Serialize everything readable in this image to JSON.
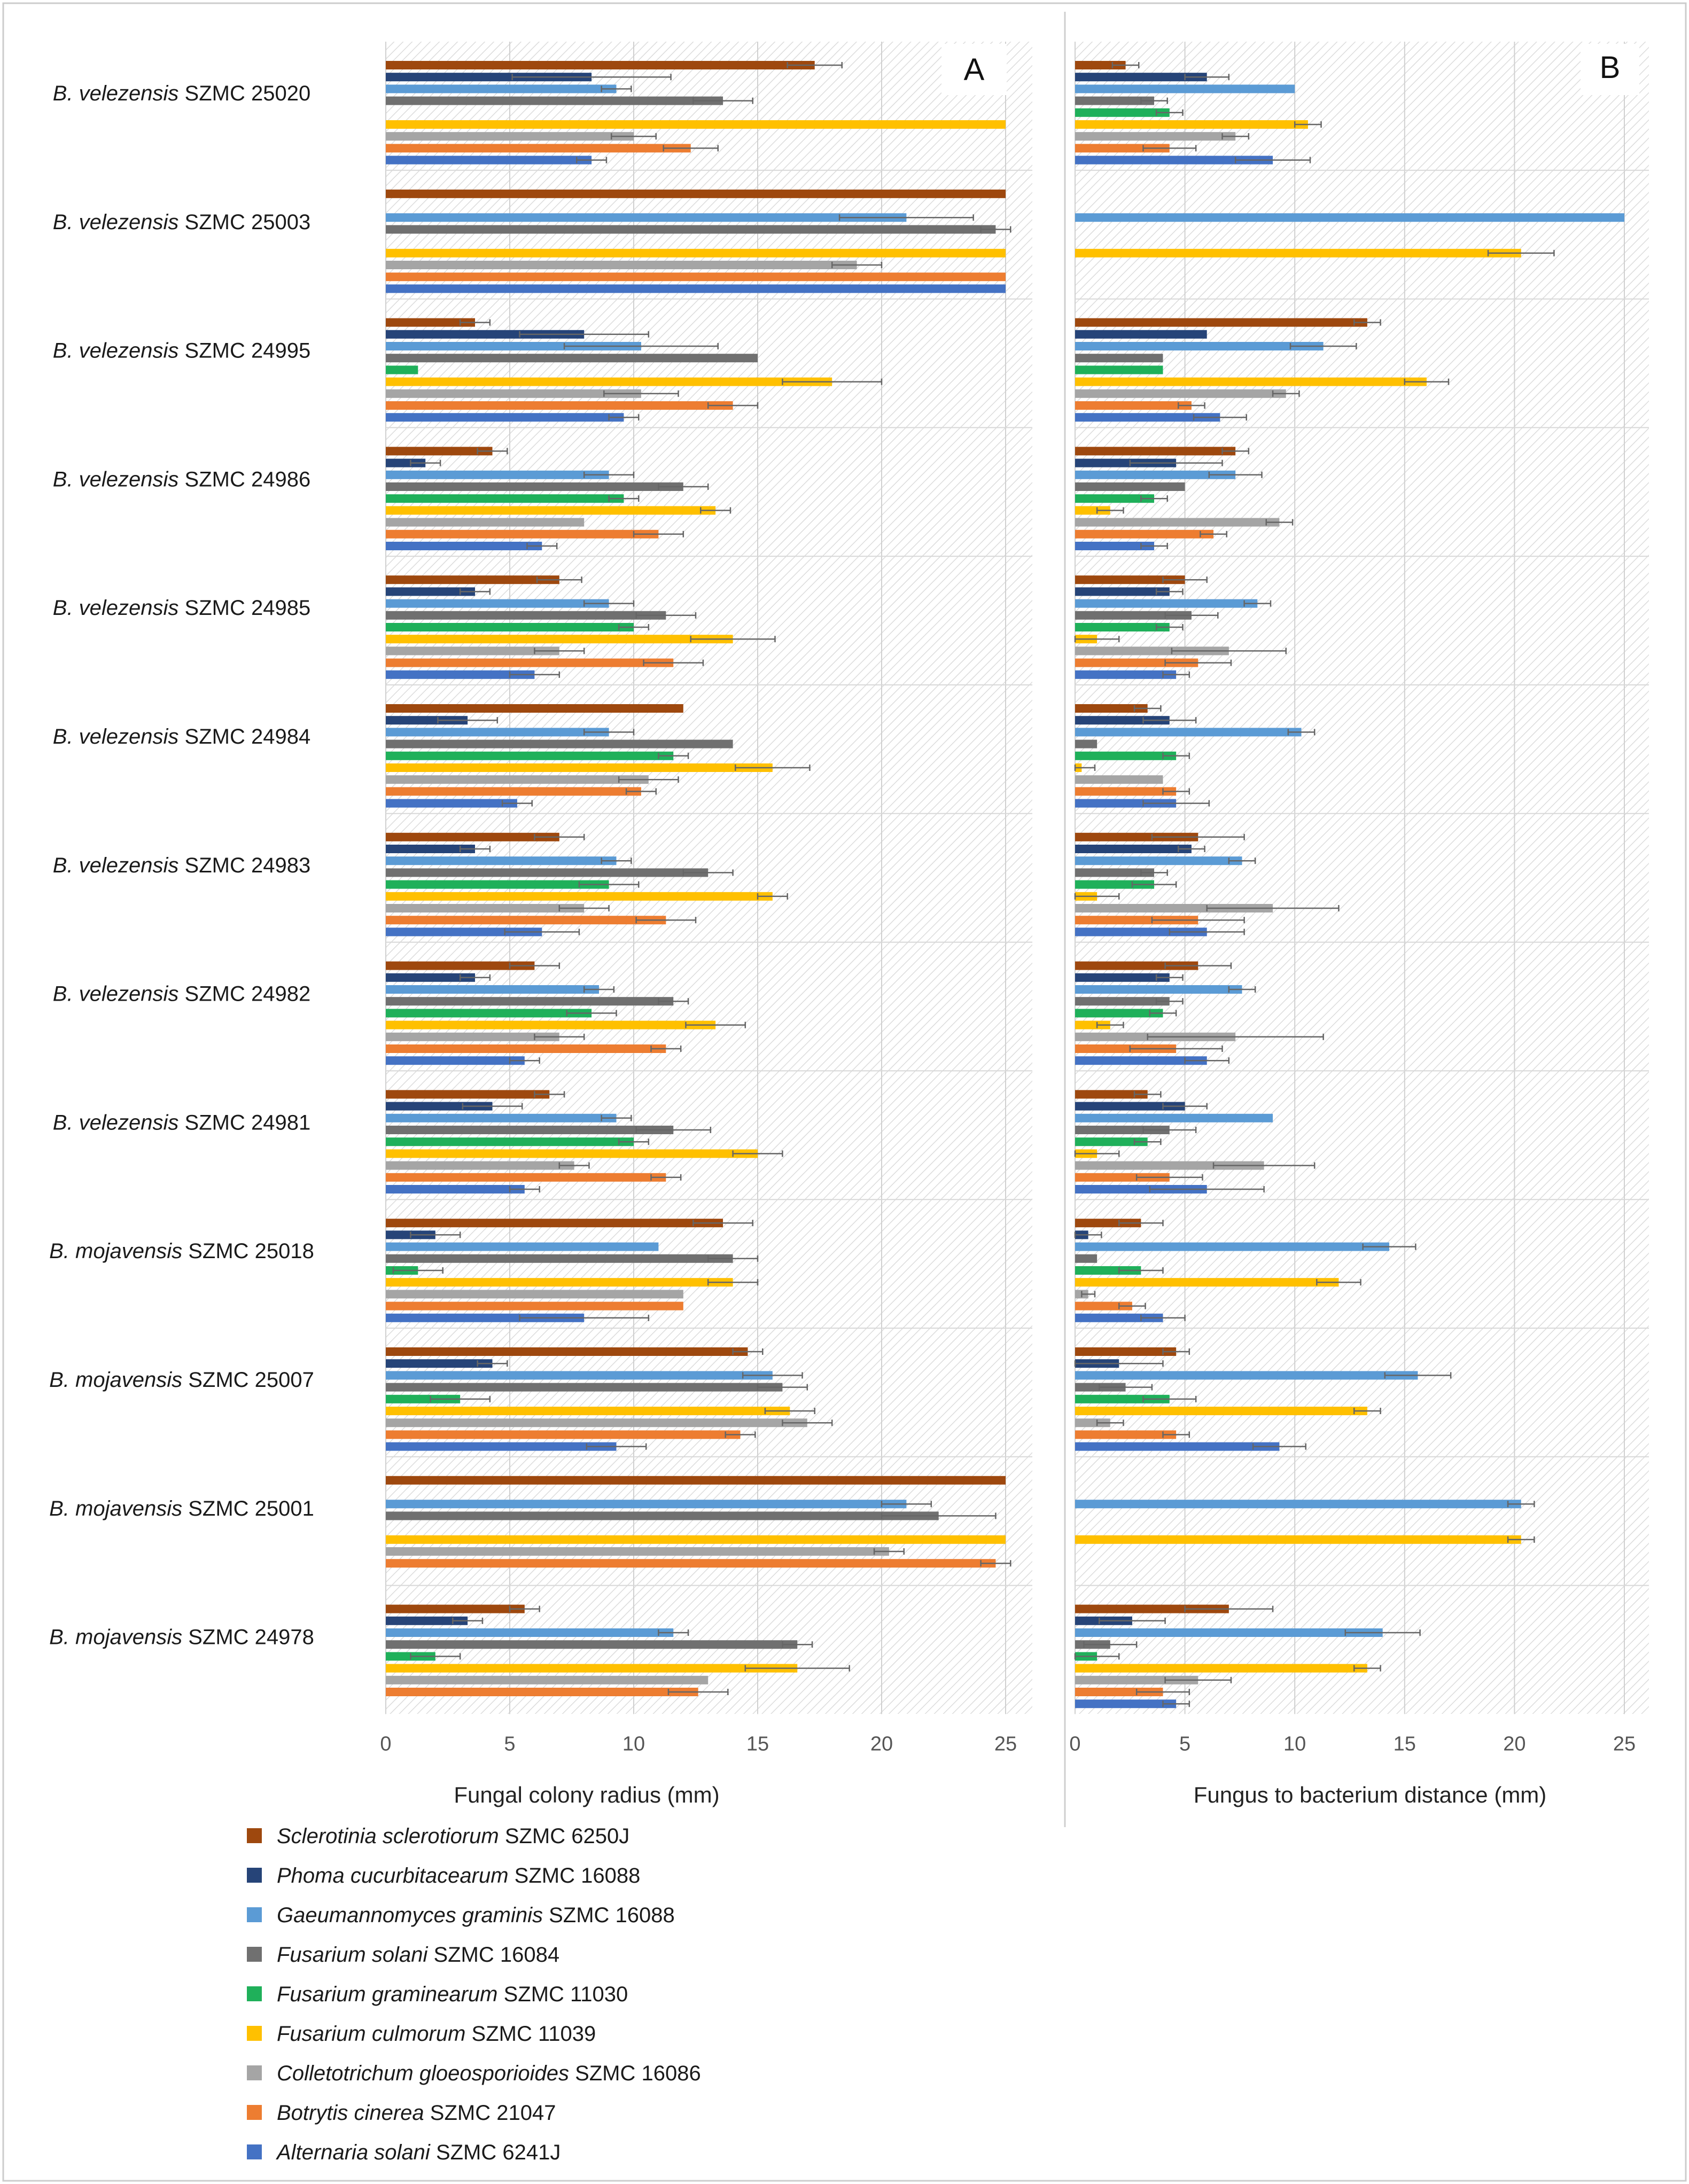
{
  "chart_data": [
    {
      "type": "bar",
      "orientation": "horizontal",
      "panel_label": "A",
      "xlabel": "Fungal colony radius (mm)",
      "xlim": [
        0,
        25
      ],
      "xticks": [
        0,
        5,
        10,
        15,
        20,
        25
      ],
      "series_order_note": "within each strain group bars are drawn top to bottom in series order",
      "values": [
        [
          17.3,
          8.3,
          9.3,
          13.6,
          null,
          25.0,
          10.0,
          12.3,
          8.3
        ],
        [
          25.0,
          null,
          21.0,
          24.6,
          null,
          25.0,
          19.0,
          25.0,
          25.0
        ],
        [
          3.6,
          8.0,
          10.3,
          15.0,
          1.3,
          18.0,
          10.3,
          14.0,
          9.6
        ],
        [
          4.3,
          1.6,
          9.0,
          12.0,
          9.6,
          13.3,
          8.0,
          11.0,
          6.3
        ],
        [
          7.0,
          3.6,
          9.0,
          11.3,
          10.0,
          14.0,
          7.0,
          11.6,
          6.0
        ],
        [
          12.0,
          3.3,
          9.0,
          14.0,
          11.6,
          15.6,
          10.6,
          10.3,
          5.3
        ],
        [
          7.0,
          3.6,
          9.3,
          13.0,
          9.0,
          15.6,
          8.0,
          11.3,
          6.3
        ],
        [
          6.0,
          3.6,
          8.6,
          11.6,
          8.3,
          13.3,
          7.0,
          11.3,
          5.6
        ],
        [
          6.6,
          4.3,
          9.3,
          11.6,
          10.0,
          15.0,
          7.6,
          11.3,
          5.6
        ],
        [
          13.6,
          2.0,
          11.0,
          14.0,
          1.3,
          14.0,
          12.0,
          12.0,
          8.0
        ],
        [
          14.6,
          4.3,
          15.6,
          16.0,
          3.0,
          16.3,
          17.0,
          14.3,
          9.3
        ],
        [
          25.0,
          null,
          21.0,
          22.3,
          null,
          25.0,
          20.3,
          24.6,
          null
        ],
        [
          5.6,
          3.3,
          11.6,
          16.6,
          2.0,
          16.6,
          13.0,
          12.6,
          null
        ]
      ],
      "errors": [
        [
          1.1,
          3.2,
          0.6,
          1.2,
          null,
          0,
          0.9,
          1.1,
          0.6
        ],
        [
          0,
          null,
          2.7,
          0.6,
          null,
          0,
          1.0,
          0,
          0
        ],
        [
          0.6,
          2.6,
          3.1,
          0,
          0,
          2.0,
          1.5,
          1.0,
          0.6
        ],
        [
          0.6,
          0.6,
          1.0,
          1.0,
          0.6,
          0.6,
          0,
          1.0,
          0.6
        ],
        [
          0.9,
          0.6,
          1.0,
          1.2,
          0.6,
          1.7,
          1.0,
          1.2,
          1.0
        ],
        [
          0,
          1.2,
          1.0,
          0,
          0.6,
          1.5,
          1.2,
          0.6,
          0.6
        ],
        [
          1.0,
          0.6,
          0.6,
          1.0,
          1.2,
          0.6,
          1.0,
          1.2,
          1.5
        ],
        [
          1.0,
          0.6,
          0.6,
          0.6,
          1.0,
          1.2,
          1.0,
          0.6,
          0.6
        ],
        [
          0.6,
          1.2,
          0.6,
          1.5,
          0.6,
          1.0,
          0.6,
          0.6,
          0.6
        ],
        [
          1.2,
          1.0,
          0,
          1.0,
          1.0,
          1.0,
          0,
          0,
          2.6
        ],
        [
          0.6,
          0.6,
          1.2,
          1.0,
          1.2,
          1.0,
          1.0,
          0.6,
          1.2
        ],
        [
          0,
          null,
          1.0,
          2.3,
          null,
          0,
          0.6,
          0.6,
          null
        ],
        [
          0.6,
          0.6,
          0.6,
          0.6,
          1.0,
          2.1,
          0,
          1.2,
          null
        ]
      ]
    },
    {
      "type": "bar",
      "orientation": "horizontal",
      "panel_label": "B",
      "xlabel": "Fungus to bacterium distance (mm)",
      "xlim": [
        0,
        25
      ],
      "xticks": [
        0,
        5,
        10,
        15,
        20,
        25
      ],
      "series_order_note": "within each strain group bars are drawn top to bottom in series order",
      "values": [
        [
          2.3,
          6.0,
          10.0,
          3.6,
          4.3,
          10.6,
          7.3,
          4.3,
          9.0
        ],
        [
          null,
          null,
          25.0,
          null,
          null,
          20.3,
          null,
          null,
          null
        ],
        [
          13.3,
          6.0,
          11.3,
          4.0,
          4.0,
          16.0,
          9.6,
          5.3,
          6.6
        ],
        [
          7.3,
          4.6,
          7.3,
          5.0,
          3.6,
          1.6,
          9.3,
          6.3,
          3.6
        ],
        [
          5.0,
          4.3,
          8.3,
          5.3,
          4.3,
          1.0,
          7.0,
          5.6,
          4.6
        ],
        [
          3.3,
          4.3,
          10.3,
          1.0,
          4.6,
          0.3,
          4.0,
          4.6,
          4.6
        ],
        [
          5.6,
          5.3,
          7.6,
          3.6,
          3.6,
          1.0,
          9.0,
          5.6,
          6.0
        ],
        [
          5.6,
          4.3,
          7.6,
          4.3,
          4.0,
          1.6,
          7.3,
          4.6,
          6.0
        ],
        [
          3.3,
          5.0,
          9.0,
          4.3,
          3.3,
          1.0,
          8.6,
          4.3,
          6.0
        ],
        [
          3.0,
          0.6,
          14.3,
          1.0,
          3.0,
          12.0,
          0.6,
          2.6,
          4.0
        ],
        [
          4.6,
          2.0,
          15.6,
          2.3,
          4.3,
          13.3,
          1.6,
          4.6,
          9.3
        ],
        [
          null,
          null,
          20.3,
          null,
          null,
          20.3,
          null,
          null,
          null
        ],
        [
          7.0,
          2.6,
          14.0,
          1.6,
          1.0,
          13.3,
          5.6,
          4.0,
          4.6
        ]
      ],
      "errors": [
        [
          0.6,
          1.0,
          0,
          0.6,
          0.6,
          0.6,
          0.6,
          1.2,
          1.7
        ],
        [
          null,
          null,
          0,
          null,
          null,
          1.5,
          null,
          null,
          null
        ],
        [
          0.6,
          0,
          1.5,
          0,
          0,
          1.0,
          0.6,
          0.6,
          1.2
        ],
        [
          0.6,
          2.1,
          1.2,
          0,
          0.6,
          0.6,
          0.6,
          0.6,
          0.6
        ],
        [
          1.0,
          0.6,
          0.6,
          1.2,
          0.6,
          1.0,
          2.6,
          1.5,
          0.6
        ],
        [
          0.6,
          1.2,
          0.6,
          0,
          0.6,
          0.6,
          0,
          0.6,
          1.5
        ],
        [
          2.1,
          0.6,
          0.6,
          0.6,
          1.0,
          1.0,
          3.0,
          2.1,
          1.7
        ],
        [
          1.5,
          0.6,
          0.6,
          0.6,
          0.6,
          0.6,
          4.0,
          2.1,
          1.0
        ],
        [
          0.6,
          1.0,
          0,
          1.2,
          0.6,
          1.0,
          2.3,
          1.5,
          2.6
        ],
        [
          1.0,
          0.6,
          1.2,
          0,
          1.0,
          1.0,
          0.3,
          0.6,
          1.0
        ],
        [
          0.6,
          2.0,
          1.5,
          1.2,
          1.2,
          0.6,
          0.6,
          0.6,
          1.2
        ],
        [
          null,
          null,
          0.6,
          null,
          null,
          0.6,
          null,
          null,
          null
        ],
        [
          2.0,
          1.5,
          1.7,
          1.2,
          1.0,
          0.6,
          1.5,
          1.2,
          0.6
        ]
      ]
    }
  ],
  "strains": [
    {
      "genus": "B.",
      "species": "velezensis",
      "code": "SZMC 25020"
    },
    {
      "genus": "B.",
      "species": "velezensis",
      "code": "SZMC 25003"
    },
    {
      "genus": "B.",
      "species": "velezensis",
      "code": "SZMC 24995"
    },
    {
      "genus": "B.",
      "species": "velezensis",
      "code": "SZMC 24986"
    },
    {
      "genus": "B.",
      "species": "velezensis",
      "code": "SZMC 24985"
    },
    {
      "genus": "B.",
      "species": "velezensis",
      "code": "SZMC 24984"
    },
    {
      "genus": "B.",
      "species": "velezensis",
      "code": "SZMC 24983"
    },
    {
      "genus": "B.",
      "species": "velezensis",
      "code": "SZMC 24982"
    },
    {
      "genus": "B.",
      "species": "velezensis",
      "code": "SZMC 24981"
    },
    {
      "genus": "B.",
      "species": "mojavensis",
      "code": "SZMC 25018"
    },
    {
      "genus": "B.",
      "species": "mojavensis",
      "code": "SZMC 25007"
    },
    {
      "genus": "B.",
      "species": "mojavensis",
      "code": "SZMC 25001"
    },
    {
      "genus": "B.",
      "species": "mojavensis",
      "code": "SZMC 24978"
    }
  ],
  "series": [
    {
      "species": "Sclerotinia sclerotiorum",
      "code": "SZMC 6250J",
      "color": "#9e480e"
    },
    {
      "species": "Phoma cucurbitacearum",
      "code": "SZMC 16088",
      "color": "#264478"
    },
    {
      "species": "Gaeumannomyces graminis",
      "code": "SZMC 16088",
      "color": "#5b9bd5"
    },
    {
      "species": "Fusarium solani",
      "code": "SZMC 16084",
      "color": "#707070"
    },
    {
      "species": "Fusarium graminearum",
      "code": "SZMC 11030",
      "color": "#1fb05a"
    },
    {
      "species": "Fusarium culmorum",
      "code": "SZMC 11039",
      "color": "#ffc000"
    },
    {
      "species": "Colletotrichum gloeosporioides",
      "code": "SZMC 16086",
      "color": "#a5a5a5"
    },
    {
      "species": "Botrytis cinerea",
      "code": "SZMC 21047",
      "color": "#ed7d31"
    },
    {
      "species": "Alternaria solani",
      "code": "SZMC 6241J",
      "color": "#4472c4"
    }
  ]
}
